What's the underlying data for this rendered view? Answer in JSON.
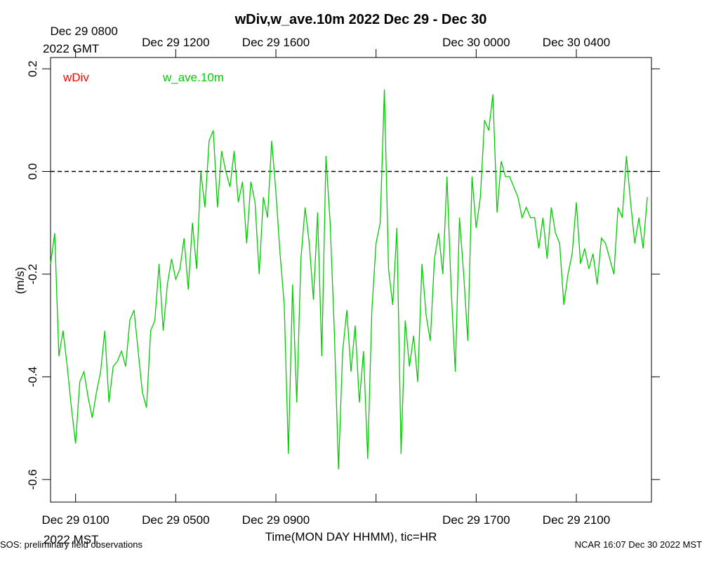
{
  "chart_data": {
    "type": "line",
    "title": "wDiv,w_ave.10m 2022 Dec 29 - Dec 30",
    "y_label": "(m/s)",
    "x_label": "Time(MON DAY HHMM), tic=HR",
    "x_unit": "2022 MST",
    "x2_unit": "2022 GMT",
    "footer_left": "SOS: preliminary field observations",
    "footer_right": "NCAR 16:07 Dec 30 2022 MST",
    "xlim": [
      "Dec 29 0000",
      "Dec 30 0000"
    ],
    "ylim": [
      -0.644,
      0.222
    ],
    "yticks": [
      0.2,
      {
        "value": 0,
        "label": "0.0"
      },
      -0.2,
      -0.4,
      -0.6
    ],
    "xticks": [
      "Dec 29 0100",
      "Dec 29 0500",
      "Dec 29 0900",
      {
        "value": "Dec 29 1300",
        "label": null
      },
      "Dec 29 1700",
      "Dec 29 2100"
    ],
    "x2ticks": [
      {
        "value": "Dec 29 0100",
        "label": "Dec 29 0800"
      },
      {
        "value": "Dec 29 0500",
        "label": "Dec 29 1200"
      },
      {
        "value": "Dec 29 0900",
        "label": "Dec 29 1600"
      },
      {
        "value": "Dec 29 1300",
        "label": null
      },
      {
        "value": "Dec 29 1700",
        "label": "Dec 30 0000"
      },
      {
        "value": "Dec 29 2100",
        "label": "Dec 30 0400"
      }
    ],
    "reference_line": 0,
    "x": [
      "Dec 29 0000",
      "Dec 29 0010",
      "Dec 29 0020",
      "Dec 29 0030",
      "Dec 29 0040",
      "Dec 29 0050",
      "Dec 29 0100",
      "Dec 29 0110",
      "Dec 29 0120",
      "Dec 29 0130",
      "Dec 29 0140",
      "Dec 29 0150",
      "Dec 29 0200",
      "Dec 29 0210",
      "Dec 29 0220",
      "Dec 29 0230",
      "Dec 29 0240",
      "Dec 29 0250",
      "Dec 29 0300",
      "Dec 29 0310",
      "Dec 29 0320",
      "Dec 29 0330",
      "Dec 29 0340",
      "Dec 29 0350",
      "Dec 29 0400",
      "Dec 29 0410",
      "Dec 29 0420",
      "Dec 29 0430",
      "Dec 29 0440",
      "Dec 29 0450",
      "Dec 29 0500",
      "Dec 29 0510",
      "Dec 29 0520",
      "Dec 29 0530",
      "Dec 29 0540",
      "Dec 29 0550",
      "Dec 29 0600",
      "Dec 29 0610",
      "Dec 29 0620",
      "Dec 29 0630",
      "Dec 29 0640",
      "Dec 29 0650",
      "Dec 29 0700",
      "Dec 29 0710",
      "Dec 29 0720",
      "Dec 29 0730",
      "Dec 29 0740",
      "Dec 29 0750",
      "Dec 29 0800",
      "Dec 29 0810",
      "Dec 29 0820",
      "Dec 29 0830",
      "Dec 29 0840",
      "Dec 29 0850",
      "Dec 29 0900",
      "Dec 29 0910",
      "Dec 29 0920",
      "Dec 29 0930",
      "Dec 29 0940",
      "Dec 29 0950",
      "Dec 29 1000",
      "Dec 29 1010",
      "Dec 29 1020",
      "Dec 29 1030",
      "Dec 29 1040",
      "Dec 29 1050",
      "Dec 29 1100",
      "Dec 29 1110",
      "Dec 29 1120",
      "Dec 29 1130",
      "Dec 29 1140",
      "Dec 29 1150",
      "Dec 29 1200",
      "Dec 29 1210",
      "Dec 29 1220",
      "Dec 29 1230",
      "Dec 29 1240",
      "Dec 29 1250",
      "Dec 29 1300",
      "Dec 29 1310",
      "Dec 29 1320",
      "Dec 29 1330",
      "Dec 29 1340",
      "Dec 29 1350",
      "Dec 29 1400",
      "Dec 29 1410",
      "Dec 29 1420",
      "Dec 29 1430",
      "Dec 29 1440",
      "Dec 29 1450",
      "Dec 29 1500",
      "Dec 29 1510",
      "Dec 29 1520",
      "Dec 29 1530",
      "Dec 29 1540",
      "Dec 29 1550",
      "Dec 29 1600",
      "Dec 29 1610",
      "Dec 29 1620",
      "Dec 29 1630",
      "Dec 29 1640",
      "Dec 29 1650",
      "Dec 29 1700",
      "Dec 29 1710",
      "Dec 29 1720",
      "Dec 29 1730",
      "Dec 29 1740",
      "Dec 29 1750",
      "Dec 29 1800",
      "Dec 29 1810",
      "Dec 29 1820",
      "Dec 29 1830",
      "Dec 29 1840",
      "Dec 29 1850",
      "Dec 29 1900",
      "Dec 29 1910",
      "Dec 29 1920",
      "Dec 29 1930",
      "Dec 29 1940",
      "Dec 29 1950",
      "Dec 29 2000",
      "Dec 29 2010",
      "Dec 29 2020",
      "Dec 29 2030",
      "Dec 29 2040",
      "Dec 29 2050",
      "Dec 29 2100",
      "Dec 29 2110",
      "Dec 29 2120",
      "Dec 29 2130",
      "Dec 29 2140",
      "Dec 29 2150",
      "Dec 29 2200",
      "Dec 29 2210",
      "Dec 29 2220",
      "Dec 29 2230",
      "Dec 29 2240",
      "Dec 29 2250",
      "Dec 29 2300",
      "Dec 29 2310",
      "Dec 29 2320",
      "Dec 29 2330",
      "Dec 29 2340",
      "Dec 29 2350"
    ],
    "series": [
      {
        "name": "wDiv",
        "color": "#ff0000"
      },
      {
        "name": "w_ave.10m",
        "color": "#00cc00",
        "values": [
          -0.18,
          -0.12,
          -0.36,
          -0.31,
          -0.38,
          -0.46,
          -0.53,
          -0.41,
          -0.39,
          -0.44,
          -0.48,
          -0.43,
          -0.39,
          -0.31,
          -0.45,
          -0.38,
          -0.37,
          -0.35,
          -0.38,
          -0.29,
          -0.27,
          -0.35,
          -0.43,
          -0.46,
          -0.31,
          -0.29,
          -0.18,
          -0.31,
          -0.22,
          -0.17,
          -0.21,
          -0.19,
          -0.13,
          -0.23,
          -0.1,
          -0.19,
          0.0,
          -0.07,
          0.06,
          0.08,
          -0.07,
          0.04,
          0.0,
          -0.03,
          0.04,
          -0.06,
          -0.02,
          -0.14,
          -0.02,
          -0.06,
          -0.2,
          -0.05,
          -0.09,
          0.06,
          -0.04,
          -0.16,
          -0.26,
          -0.55,
          -0.22,
          -0.45,
          -0.17,
          -0.07,
          -0.14,
          -0.25,
          -0.08,
          -0.36,
          0.03,
          -0.1,
          -0.31,
          -0.58,
          -0.35,
          -0.27,
          -0.39,
          -0.3,
          -0.45,
          -0.35,
          -0.56,
          -0.27,
          -0.14,
          -0.1,
          0.16,
          -0.19,
          -0.26,
          -0.11,
          -0.55,
          -0.29,
          -0.38,
          -0.32,
          -0.41,
          -0.18,
          -0.28,
          -0.33,
          -0.17,
          -0.12,
          -0.2,
          -0.01,
          -0.23,
          -0.39,
          -0.09,
          -0.2,
          -0.33,
          -0.01,
          -0.11,
          -0.05,
          0.1,
          0.08,
          0.15,
          -0.08,
          0.02,
          -0.01,
          -0.01,
          -0.03,
          -0.05,
          -0.09,
          -0.07,
          -0.09,
          -0.09,
          -0.15,
          -0.09,
          -0.17,
          -0.07,
          -0.12,
          -0.14,
          -0.26,
          -0.2,
          -0.16,
          -0.06,
          -0.18,
          -0.15,
          -0.19,
          -0.16,
          -0.22,
          -0.13,
          -0.14,
          -0.17,
          -0.2,
          -0.07,
          -0.09,
          0.03,
          -0.06,
          -0.14,
          -0.09,
          -0.15,
          -0.05
        ]
      }
    ]
  }
}
